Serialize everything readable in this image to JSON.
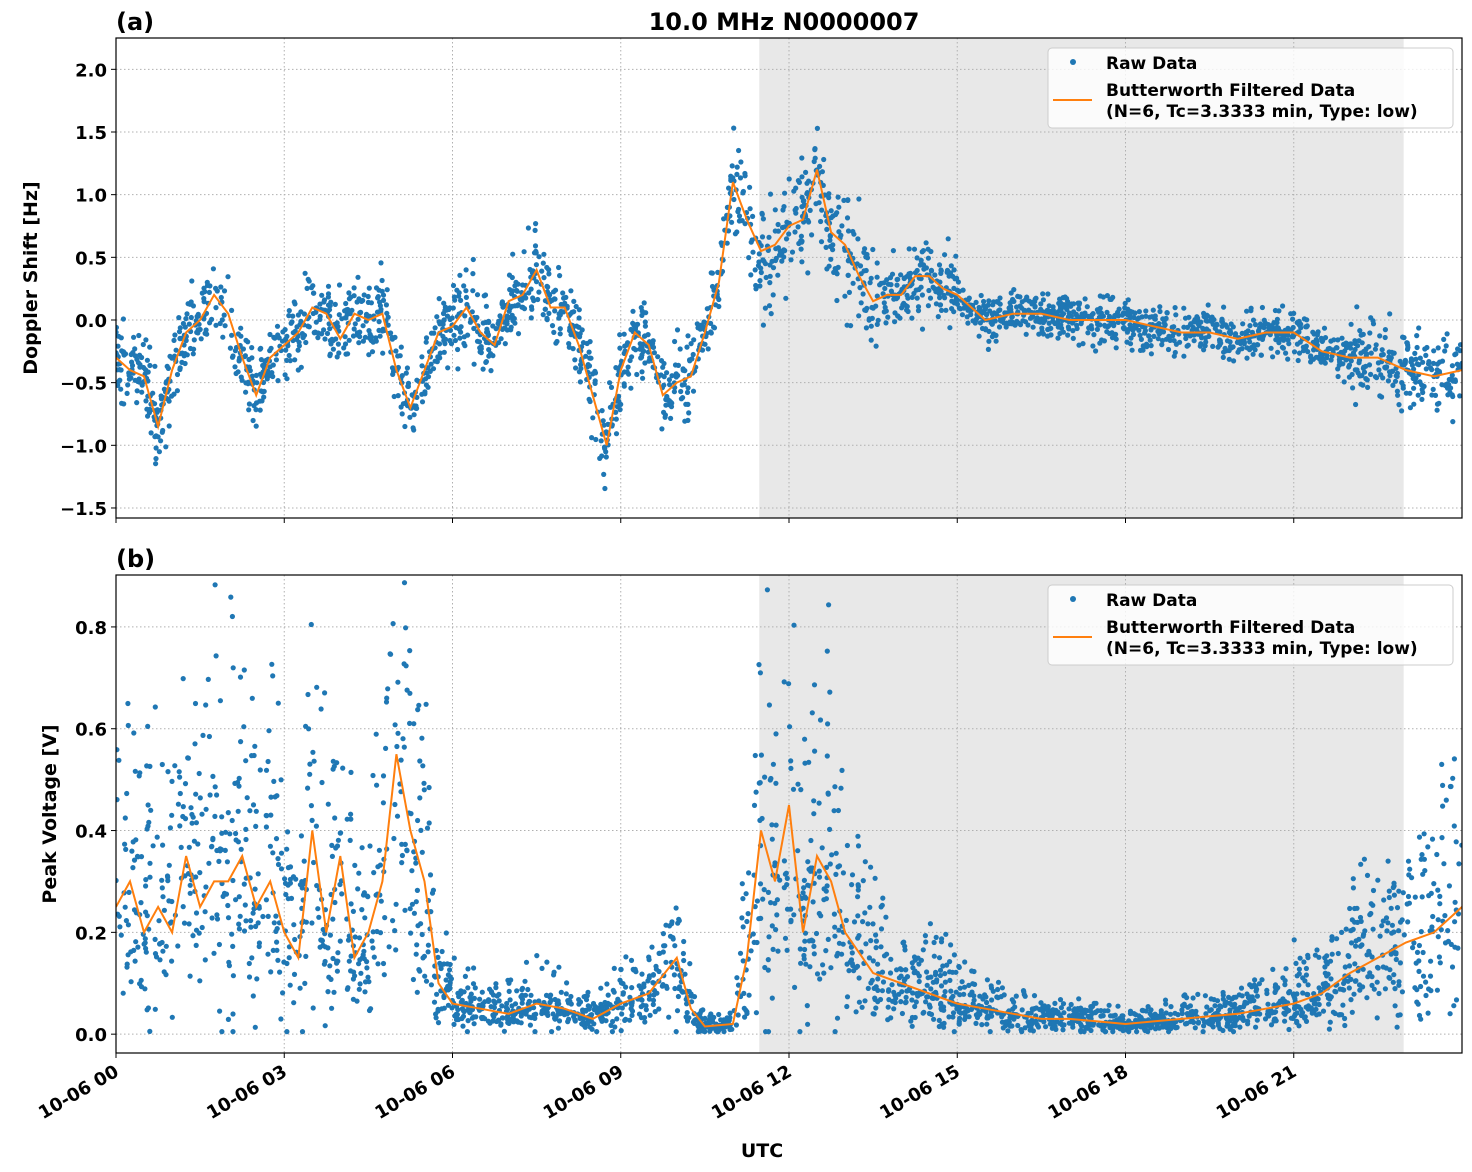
{
  "chart_data": [
    {
      "type": "scatter",
      "panel_label": "(a)",
      "title": "10.0 MHz N0000007",
      "xlabel": "",
      "ylabel": "Doppler Shift [Hz]",
      "xlim_hours_utc": [
        0,
        24
      ],
      "ylim": [
        -1.58,
        2.25
      ],
      "yticks": [
        "2.0",
        "1.5",
        "1.0",
        "0.5",
        "0.0",
        "−0.5",
        "−1.0",
        "−1.5"
      ],
      "ytick_values": [
        2.0,
        1.5,
        1.0,
        0.5,
        0.0,
        -0.5,
        -1.0,
        -1.5
      ],
      "grid": true,
      "shaded_interval_hours": [
        11.47,
        22.96
      ],
      "legend": {
        "placement": "top-right",
        "entries": [
          "Raw Data",
          "Butterworth Filtered Data",
          "(N=6, Tc=3.3333 min, Type: low)"
        ]
      },
      "series": [
        {
          "name": "Raw Data",
          "color": "#1f77b4",
          "kind": "scatter"
        },
        {
          "name": "Butterworth Filtered Data",
          "color": "#ff7f0e",
          "kind": "line",
          "x": [
            0,
            0.25,
            0.5,
            0.75,
            1,
            1.25,
            1.5,
            1.75,
            2,
            2.25,
            2.5,
            2.75,
            3,
            3.25,
            3.5,
            3.75,
            4,
            4.25,
            4.5,
            4.75,
            5,
            5.25,
            5.5,
            5.75,
            6,
            6.25,
            6.5,
            6.75,
            7,
            7.25,
            7.5,
            7.75,
            8,
            8.25,
            8.5,
            8.75,
            9,
            9.25,
            9.5,
            9.75,
            10,
            10.25,
            10.5,
            10.75,
            11,
            11.25,
            11.5,
            11.75,
            12,
            12.25,
            12.5,
            12.75,
            13,
            13.25,
            13.5,
            13.75,
            14,
            14.25,
            14.5,
            14.75,
            15,
            15.5,
            16,
            16.5,
            17,
            17.5,
            18,
            18.5,
            19,
            19.5,
            20,
            20.5,
            21,
            21.5,
            22,
            22.5,
            23,
            23.5,
            24
          ],
          "y": [
            -0.3,
            -0.4,
            -0.45,
            -0.85,
            -0.4,
            -0.1,
            0.0,
            0.2,
            0.05,
            -0.3,
            -0.6,
            -0.3,
            -0.2,
            -0.1,
            0.1,
            0.05,
            -0.15,
            0.05,
            0.0,
            0.05,
            -0.4,
            -0.7,
            -0.4,
            -0.1,
            -0.05,
            0.1,
            -0.1,
            -0.2,
            0.15,
            0.2,
            0.4,
            0.1,
            0.1,
            -0.2,
            -0.6,
            -1.0,
            -0.4,
            -0.1,
            -0.2,
            -0.6,
            -0.5,
            -0.45,
            -0.1,
            0.3,
            1.1,
            0.8,
            0.55,
            0.6,
            0.75,
            0.8,
            1.2,
            0.7,
            0.6,
            0.35,
            0.15,
            0.2,
            0.2,
            0.35,
            0.35,
            0.25,
            0.2,
            0.0,
            0.05,
            0.05,
            0.0,
            0.0,
            0.0,
            -0.05,
            -0.1,
            -0.1,
            -0.15,
            -0.1,
            -0.1,
            -0.25,
            -0.3,
            -0.3,
            -0.4,
            -0.45,
            -0.4
          ]
        }
      ]
    },
    {
      "type": "scatter",
      "panel_label": "(b)",
      "xlabel": "UTC",
      "ylabel": "Peak Voltage [V]",
      "xlim_hours_utc": [
        0,
        24
      ],
      "ylim": [
        -0.037,
        0.902
      ],
      "yticks": [
        "0.8",
        "0.6",
        "0.4",
        "0.2",
        "0.0"
      ],
      "ytick_values": [
        0.8,
        0.6,
        0.4,
        0.2,
        0.0
      ],
      "xticks": [
        "10-06 00",
        "10-06 03",
        "10-06 06",
        "10-06 09",
        "10-06 12",
        "10-06 15",
        "10-06 18",
        "10-06 21"
      ],
      "xtick_hours": [
        0,
        3,
        6,
        9,
        12,
        15,
        18,
        21
      ],
      "grid": true,
      "shaded_interval_hours": [
        11.47,
        22.96
      ],
      "legend": {
        "placement": "top-right",
        "entries": [
          "Raw Data",
          "Butterworth Filtered Data",
          "(N=6, Tc=3.3333 min, Type: low)"
        ]
      },
      "series": [
        {
          "name": "Raw Data",
          "color": "#1f77b4",
          "kind": "scatter"
        },
        {
          "name": "Butterworth Filtered Data",
          "color": "#ff7f0e",
          "kind": "line",
          "x": [
            0,
            0.25,
            0.5,
            0.75,
            1,
            1.25,
            1.5,
            1.75,
            2,
            2.25,
            2.5,
            2.75,
            3,
            3.25,
            3.5,
            3.75,
            4,
            4.25,
            4.5,
            4.75,
            5,
            5.25,
            5.5,
            5.75,
            6,
            6.5,
            7,
            7.5,
            8,
            8.5,
            9,
            9.5,
            10,
            10.25,
            10.5,
            11,
            11.25,
            11.5,
            11.75,
            12,
            12.25,
            12.5,
            12.75,
            13,
            13.5,
            14,
            14.5,
            15,
            15.5,
            16,
            16.5,
            17,
            17.5,
            18,
            18.5,
            19,
            19.5,
            20,
            20.5,
            21,
            21.5,
            22,
            22.5,
            23,
            23.5,
            24
          ],
          "y": [
            0.25,
            0.3,
            0.2,
            0.25,
            0.2,
            0.35,
            0.25,
            0.3,
            0.3,
            0.35,
            0.25,
            0.3,
            0.2,
            0.15,
            0.4,
            0.2,
            0.35,
            0.15,
            0.2,
            0.3,
            0.55,
            0.4,
            0.3,
            0.1,
            0.06,
            0.05,
            0.04,
            0.06,
            0.05,
            0.03,
            0.06,
            0.08,
            0.15,
            0.05,
            0.015,
            0.02,
            0.15,
            0.4,
            0.3,
            0.45,
            0.2,
            0.35,
            0.3,
            0.2,
            0.12,
            0.1,
            0.08,
            0.06,
            0.05,
            0.04,
            0.03,
            0.03,
            0.025,
            0.02,
            0.025,
            0.03,
            0.035,
            0.04,
            0.05,
            0.06,
            0.08,
            0.12,
            0.15,
            0.18,
            0.2,
            0.25
          ]
        }
      ]
    }
  ]
}
